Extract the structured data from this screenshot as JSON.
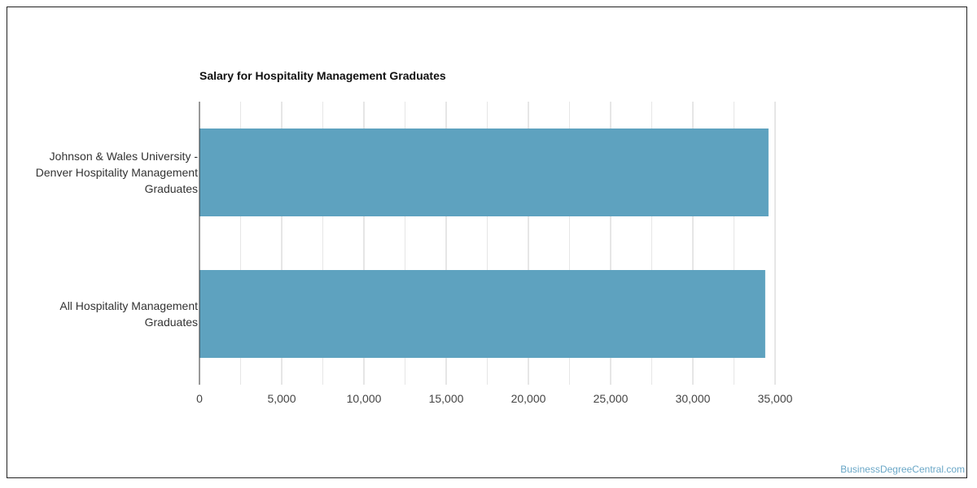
{
  "watermark": "BusinessDegreeCentral.com",
  "colors": {
    "bar": "#5ea2bf",
    "grid_major": "#cccccc",
    "grid_minor": "#e6e6e6",
    "axis": "#333333",
    "tick_text": "#444444"
  },
  "chart_data": {
    "type": "bar",
    "orientation": "horizontal",
    "title": "Salary for Hospitality Management Graduates",
    "categories": [
      "Johnson & Wales University - Denver Hospitality Management Graduates",
      "All Hospitality Management Graduates"
    ],
    "category_lines": [
      [
        "Johnson & Wales University -",
        "Denver Hospitality Management",
        "Graduates"
      ],
      [
        "All Hospitality Management",
        "Graduates"
      ]
    ],
    "values": [
      34600,
      34400
    ],
    "xlabel": "",
    "ylabel": "",
    "xlim": [
      0,
      35000
    ],
    "ticks": [
      0,
      5000,
      10000,
      15000,
      20000,
      25000,
      30000,
      35000
    ],
    "tick_labels": [
      "0",
      "5,000",
      "10,000",
      "15,000",
      "20,000",
      "25,000",
      "30,000",
      "35,000"
    ],
    "grid": true,
    "legend": "none"
  }
}
